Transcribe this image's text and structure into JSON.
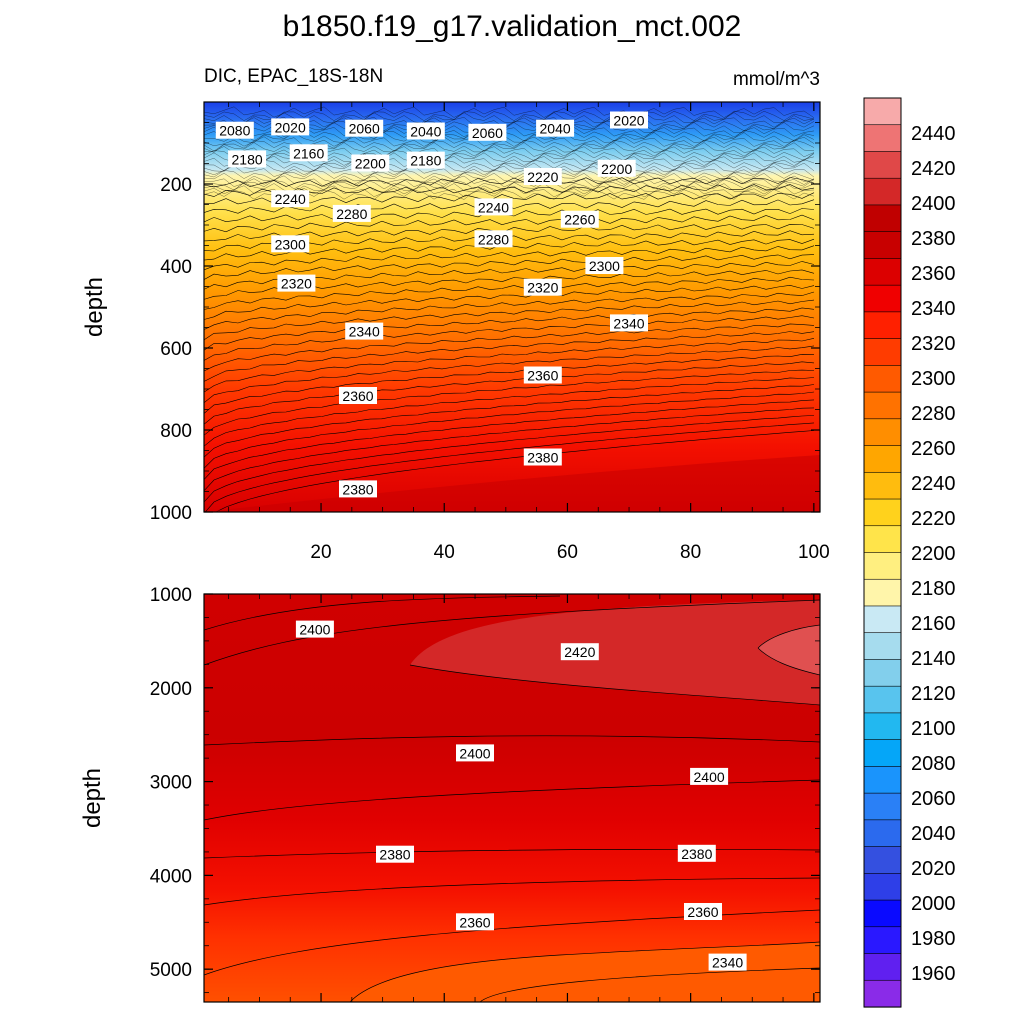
{
  "chart_data": {
    "type": "contour",
    "title": "b1850.f19_g17.validation_mct.002",
    "variable_label": "DIC, EPAC_18S-18N",
    "units": "mmol/m^3",
    "panels": [
      {
        "name": "upper",
        "ylabel": "depth",
        "ylim": [
          1000,
          0
        ],
        "xlim": [
          1,
          101
        ],
        "yticks": [
          200,
          400,
          600,
          800,
          1000
        ],
        "xticks": [
          20,
          40,
          60,
          80,
          100
        ],
        "contour_labels": [
          {
            "text": "2080",
            "x": 6,
            "y": 70
          },
          {
            "text": "2020",
            "x": 15,
            "y": 62
          },
          {
            "text": "2060",
            "x": 27,
            "y": 65
          },
          {
            "text": "2040",
            "x": 37,
            "y": 72
          },
          {
            "text": "2060",
            "x": 47,
            "y": 75
          },
          {
            "text": "2040",
            "x": 58,
            "y": 65
          },
          {
            "text": "2020",
            "x": 70,
            "y": 45
          },
          {
            "text": "2180",
            "x": 8,
            "y": 140
          },
          {
            "text": "2160",
            "x": 18,
            "y": 125
          },
          {
            "text": "2200",
            "x": 28,
            "y": 150
          },
          {
            "text": "2180",
            "x": 37,
            "y": 143
          },
          {
            "text": "2220",
            "x": 56,
            "y": 183
          },
          {
            "text": "2200",
            "x": 68,
            "y": 163
          },
          {
            "text": "2240",
            "x": 15,
            "y": 237
          },
          {
            "text": "2240",
            "x": 48,
            "y": 257
          },
          {
            "text": "2280",
            "x": 25,
            "y": 273
          },
          {
            "text": "2260",
            "x": 62,
            "y": 287
          },
          {
            "text": "2280",
            "x": 48,
            "y": 335
          },
          {
            "text": "2300",
            "x": 15,
            "y": 347
          },
          {
            "text": "2300",
            "x": 66,
            "y": 400
          },
          {
            "text": "2320",
            "x": 16,
            "y": 443
          },
          {
            "text": "2320",
            "x": 56,
            "y": 453
          },
          {
            "text": "2340",
            "x": 27,
            "y": 560
          },
          {
            "text": "2340",
            "x": 70,
            "y": 540
          },
          {
            "text": "2360",
            "x": 56,
            "y": 667
          },
          {
            "text": "2360",
            "x": 26,
            "y": 717
          },
          {
            "text": "2380",
            "x": 56,
            "y": 867
          },
          {
            "text": "2380",
            "x": 26,
            "y": 945
          }
        ]
      },
      {
        "name": "lower",
        "ylabel": "depth",
        "ylim": [
          5350,
          1000
        ],
        "xlim": [
          1,
          101
        ],
        "yticks": [
          1000,
          2000,
          3000,
          4000,
          5000
        ],
        "contour_labels": [
          {
            "text": "2400",
            "x": 19,
            "y": 1380
          },
          {
            "text": "2420",
            "x": 62,
            "y": 1620
          },
          {
            "text": "2400",
            "x": 45,
            "y": 2700
          },
          {
            "text": "2400",
            "x": 83,
            "y": 2950
          },
          {
            "text": "2380",
            "x": 32,
            "y": 3780
          },
          {
            "text": "2380",
            "x": 81,
            "y": 3770
          },
          {
            "text": "2360",
            "x": 45,
            "y": 4500
          },
          {
            "text": "2360",
            "x": 82,
            "y": 4390
          },
          {
            "text": "2340",
            "x": 86,
            "y": 4930
          }
        ]
      }
    ],
    "colorbar": {
      "levels": [
        1960,
        1980,
        2000,
        2020,
        2040,
        2060,
        2080,
        2100,
        2120,
        2140,
        2160,
        2180,
        2200,
        2220,
        2240,
        2260,
        2280,
        2300,
        2320,
        2340,
        2360,
        2380,
        2400,
        2420,
        2440
      ],
      "colors": [
        "#8a2be8",
        "#6020f0",
        "#2a18ff",
        "#0a0aff",
        "#2e3fe8",
        "#3450e0",
        "#2b6aee",
        "#2a80f6",
        "#1a94fc",
        "#05a6f8",
        "#22b8f0",
        "#58c4ee",
        "#82cfec",
        "#a6dcee",
        "#c9e9f4",
        "#fff5aa",
        "#ffef80",
        "#ffe44a",
        "#ffd21c",
        "#ffbc0e",
        "#ffa600",
        "#ff8e00",
        "#ff7200",
        "#ff5a00",
        "#ff3c00",
        "#ff2000",
        "#f00000",
        "#dc0000",
        "#c80000",
        "#c00000",
        "#d42828",
        "#e04848",
        "#ee7474",
        "#f7aaaa"
      ]
    }
  }
}
